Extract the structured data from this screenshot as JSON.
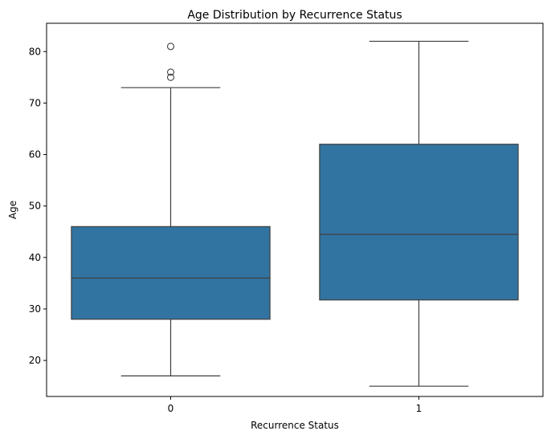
{
  "chart_data": {
    "type": "boxplot",
    "title": "Age Distribution by Recurrence Status",
    "xlabel": "Recurrence Status",
    "ylabel": "Age",
    "categories": [
      "0",
      "1"
    ],
    "ylim": [
      13,
      85.5
    ],
    "yticks": [
      20,
      30,
      40,
      50,
      60,
      70,
      80
    ],
    "grid": false,
    "box_color": "#3274a1",
    "line_color": "#3f3f3f",
    "boxes": [
      {
        "category": "0",
        "whisker_low": 17,
        "q1": 28,
        "median": 36,
        "q3": 46,
        "whisker_high": 73,
        "outliers": [
          75,
          76,
          81
        ]
      },
      {
        "category": "1",
        "whisker_low": 15,
        "q1": 31.75,
        "median": 44.5,
        "q3": 62,
        "whisker_high": 82,
        "outliers": []
      }
    ]
  }
}
